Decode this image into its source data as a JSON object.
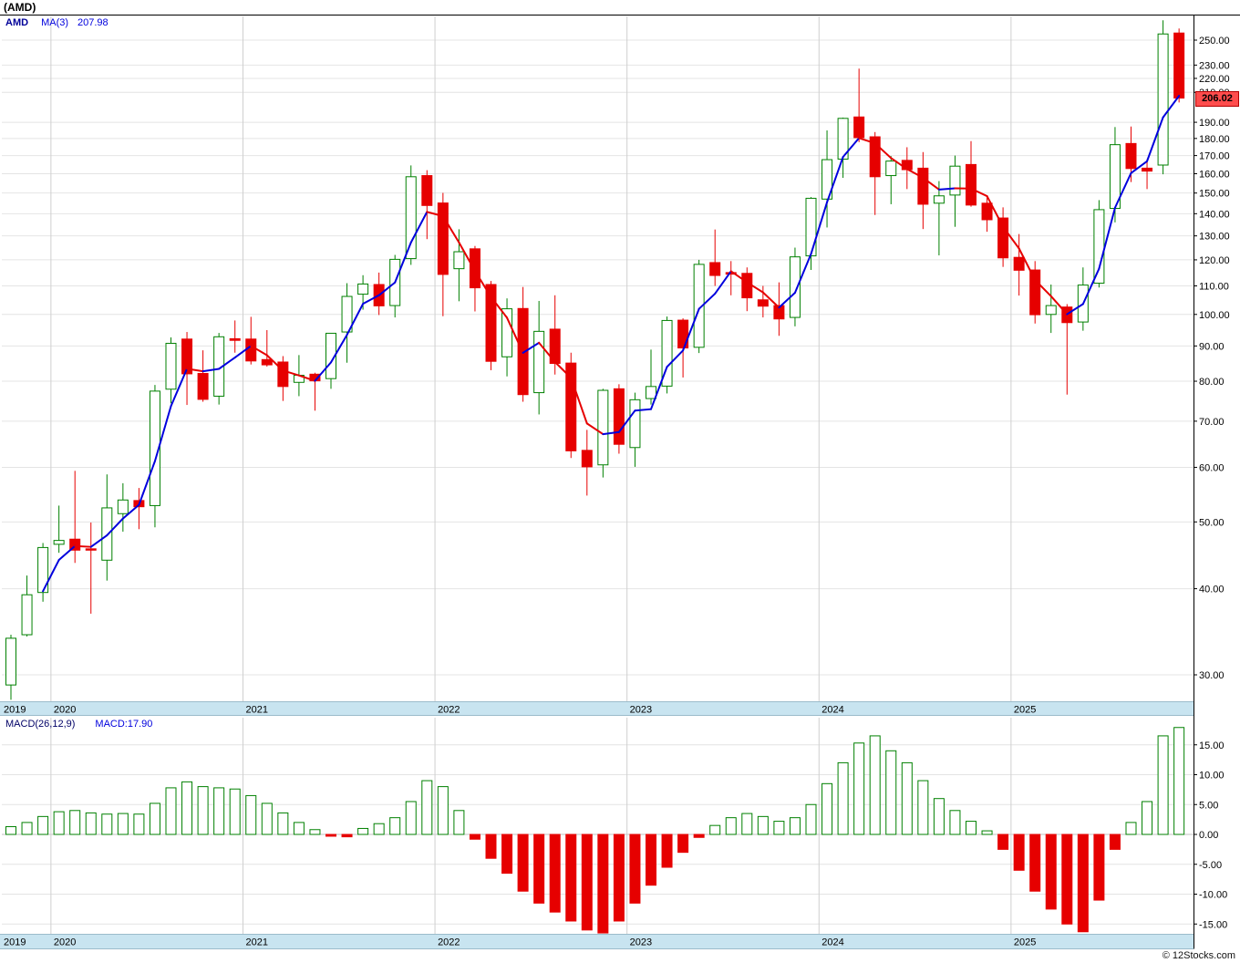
{
  "header": {
    "title": "(AMD)"
  },
  "top_panel": {
    "legend": {
      "symbol": "AMD",
      "ma_label": "MA(3)",
      "ma_value": "207.98"
    },
    "price_tag": "206.02"
  },
  "bottom_panel": {
    "legend": {
      "indicator": "MACD(26,12,9)",
      "value": "MACD:17.90"
    }
  },
  "footer": {
    "credit": "© 12Stocks.com"
  },
  "colors": {
    "up": "#008000",
    "down": "#e60000",
    "ma_up": "#0000dd",
    "ma_down": "#e60000",
    "band": "#c8e4f0",
    "tag_bg": "#ff4d4d",
    "tag_border": "#b30000",
    "grid": "#e4e4e4",
    "grid_vertical": "#cfcfcf",
    "axis_text": "#000000"
  },
  "chart_data": {
    "type": "candlestick",
    "symbol": "AMD",
    "title": "(AMD)",
    "ma_period": 3,
    "ma_last": 207.98,
    "last_price": 206.02,
    "macd_params": [
      26,
      12,
      9
    ],
    "macd_last": 17.9,
    "years": [
      "2019",
      "2020",
      "2021",
      "2022",
      "2023",
      "2024",
      "2025"
    ],
    "price_axis": {
      "scale": "log",
      "min": 30,
      "max": 250,
      "ticks": [
        {
          "v": 250,
          "label": "250.00"
        },
        {
          "v": 230,
          "label": "230.00"
        },
        {
          "v": 220,
          "label": "220.00"
        },
        {
          "v": 210,
          "label": "210.00"
        },
        {
          "v": 190,
          "label": "190.00"
        },
        {
          "v": 180,
          "label": "180.00"
        },
        {
          "v": 170,
          "label": "170.00"
        },
        {
          "v": 160,
          "label": "160.00"
        },
        {
          "v": 150,
          "label": "150.00"
        },
        {
          "v": 140,
          "label": "140.00"
        },
        {
          "v": 130,
          "label": "130.00"
        },
        {
          "v": 120,
          "label": "120.00"
        },
        {
          "v": 110,
          "label": "110.00"
        },
        {
          "v": 100,
          "label": "100.00"
        },
        {
          "v": 90,
          "label": "90.00"
        },
        {
          "v": 80,
          "label": "80.00"
        },
        {
          "v": 70,
          "label": "70.00"
        },
        {
          "v": 60,
          "label": "60.00"
        },
        {
          "v": 50,
          "label": "50.00"
        },
        {
          "v": 40,
          "label": "40.00"
        },
        {
          "v": 30,
          "label": "30.00"
        }
      ]
    },
    "macd_axis": {
      "min": -15,
      "max": 15,
      "ticks": [
        {
          "v": 15,
          "label": "15.00"
        },
        {
          "v": 10,
          "label": "10.00"
        },
        {
          "v": 5,
          "label": "5.00"
        },
        {
          "v": 0,
          "label": "0.00"
        },
        {
          "v": -5,
          "label": "-5.00"
        },
        {
          "v": -10,
          "label": "-10.00"
        },
        {
          "v": -15,
          "label": "-15.00"
        }
      ]
    },
    "fields": [
      "month",
      "open",
      "high",
      "low",
      "close",
      "macd"
    ],
    "candles": [
      [
        "2019-10",
        29.0,
        34.3,
        27.6,
        33.9,
        1.3
      ],
      [
        "2019-11",
        34.3,
        41.8,
        34.1,
        39.2,
        2.0
      ],
      [
        "2019-12",
        39.5,
        46.6,
        38.3,
        45.9,
        3.0
      ],
      [
        "2020-01",
        46.4,
        52.8,
        45.1,
        47.0,
        3.8
      ],
      [
        "2020-02",
        47.2,
        59.3,
        43.6,
        45.5,
        4.0
      ],
      [
        "2020-03",
        45.7,
        49.9,
        36.8,
        45.5,
        3.6
      ],
      [
        "2020-04",
        44.0,
        58.6,
        41.1,
        52.4,
        3.4
      ],
      [
        "2020-05",
        51.4,
        56.9,
        48.4,
        53.8,
        3.5
      ],
      [
        "2020-06",
        53.7,
        56.0,
        48.8,
        52.6,
        3.4
      ],
      [
        "2020-07",
        52.8,
        79.0,
        49.1,
        77.4,
        5.2
      ],
      [
        "2020-08",
        77.9,
        92.6,
        74.3,
        90.8,
        7.8
      ],
      [
        "2020-09",
        92.1,
        94.3,
        73.9,
        82.0,
        8.8
      ],
      [
        "2020-10",
        82.1,
        88.7,
        74.7,
        75.3,
        8.0
      ],
      [
        "2020-11",
        76.1,
        94.0,
        74.0,
        92.8,
        7.8
      ],
      [
        "2020-12",
        92.2,
        98.0,
        88.0,
        91.7,
        7.6
      ],
      [
        "2021-01",
        92.1,
        99.2,
        84.6,
        85.6,
        6.5
      ],
      [
        "2021-02",
        86.0,
        94.9,
        84.0,
        84.5,
        5.2
      ],
      [
        "2021-03",
        85.3,
        87.0,
        74.9,
        78.6,
        3.6
      ],
      [
        "2021-04",
        79.7,
        87.3,
        76.1,
        81.6,
        2.0
      ],
      [
        "2021-05",
        81.9,
        82.3,
        72.5,
        80.1,
        0.8
      ],
      [
        "2021-06",
        80.7,
        94.0,
        78.0,
        93.9,
        -0.3
      ],
      [
        "2021-07",
        94.3,
        111.0,
        85.1,
        106.2,
        -0.4
      ],
      [
        "2021-08",
        107.0,
        114.0,
        101.6,
        110.7,
        1.0
      ],
      [
        "2021-09",
        110.5,
        115.0,
        99.8,
        102.9,
        1.8
      ],
      [
        "2021-10",
        103.0,
        122.0,
        99.0,
        120.2,
        2.8
      ],
      [
        "2021-11",
        120.5,
        164.5,
        118.0,
        158.4,
        5.5
      ],
      [
        "2021-12",
        159.0,
        161.9,
        128.6,
        143.9,
        9.0
      ],
      [
        "2022-01",
        145.1,
        150.1,
        99.4,
        114.3,
        8.0
      ],
      [
        "2022-02",
        116.5,
        132.9,
        104.5,
        123.3,
        4.0
      ],
      [
        "2022-03",
        124.5,
        125.7,
        101.0,
        109.3,
        -0.8
      ],
      [
        "2022-04",
        110.5,
        111.8,
        83.0,
        85.5,
        -4.0
      ],
      [
        "2022-05",
        86.8,
        105.5,
        81.3,
        101.9,
        -6.5
      ],
      [
        "2022-06",
        102.0,
        109.6,
        74.7,
        76.5,
        -9.5
      ],
      [
        "2022-07",
        77.0,
        104.6,
        71.6,
        94.5,
        -11.5
      ],
      [
        "2022-08",
        95.2,
        106.6,
        81.8,
        84.9,
        -13.0
      ],
      [
        "2022-09",
        85.0,
        88.0,
        61.9,
        63.4,
        -14.5
      ],
      [
        "2022-10",
        63.5,
        68.0,
        54.6,
        60.1,
        -16.0
      ],
      [
        "2022-11",
        60.5,
        78.0,
        58.0,
        77.6,
        -16.5
      ],
      [
        "2022-12",
        78.0,
        79.2,
        62.8,
        64.8,
        -14.5
      ],
      [
        "2023-01",
        64.1,
        77.0,
        60.1,
        75.2,
        -11.5
      ],
      [
        "2023-02",
        75.5,
        88.9,
        74.0,
        78.6,
        -8.5
      ],
      [
        "2023-03",
        78.7,
        99.3,
        76.8,
        98.0,
        -5.5
      ],
      [
        "2023-04",
        98.1,
        98.7,
        81.0,
        89.4,
        -3.0
      ],
      [
        "2023-05",
        89.6,
        120.0,
        87.9,
        118.2,
        -0.5
      ],
      [
        "2023-06",
        118.9,
        132.8,
        110.0,
        113.9,
        1.5
      ],
      [
        "2023-07",
        115.0,
        119.5,
        106.6,
        114.4,
        2.8
      ],
      [
        "2023-08",
        114.7,
        117.0,
        101.1,
        105.7,
        3.5
      ],
      [
        "2023-09",
        105.0,
        110.0,
        99.0,
        102.8,
        3.0
      ],
      [
        "2023-10",
        103.0,
        111.3,
        93.1,
        98.5,
        2.2
      ],
      [
        "2023-11",
        99.0,
        125.0,
        96.1,
        121.2,
        2.8
      ],
      [
        "2023-12",
        121.6,
        148.0,
        116.0,
        147.4,
        5.0
      ],
      [
        "2024-01",
        147.0,
        184.9,
        133.7,
        167.7,
        8.5
      ],
      [
        "2024-02",
        168.0,
        193.0,
        157.8,
        192.5,
        12.0
      ],
      [
        "2024-03",
        193.4,
        227.3,
        177.8,
        180.5,
        15.3
      ],
      [
        "2024-04",
        181.0,
        183.9,
        139.4,
        158.4,
        16.5
      ],
      [
        "2024-05",
        159.0,
        169.7,
        144.5,
        166.9,
        14.0
      ],
      [
        "2024-06",
        167.3,
        174.8,
        152.0,
        162.2,
        12.0
      ],
      [
        "2024-07",
        163.0,
        172.0,
        133.0,
        144.5,
        9.0
      ],
      [
        "2024-08",
        145.0,
        156.1,
        121.8,
        148.6,
        6.0
      ],
      [
        "2024-09",
        149.0,
        170.0,
        134.0,
        164.1,
        4.0
      ],
      [
        "2024-10",
        165.0,
        178.4,
        143.3,
        144.1,
        2.2
      ],
      [
        "2024-11",
        145.0,
        148.5,
        131.8,
        137.2,
        0.6
      ],
      [
        "2024-12",
        138.0,
        143.0,
        117.2,
        120.8,
        -2.5
      ],
      [
        "2025-01",
        121.0,
        130.8,
        106.5,
        115.9,
        -6.0
      ],
      [
        "2025-02",
        116.0,
        119.5,
        97.0,
        99.9,
        -9.5
      ],
      [
        "2025-03",
        100.0,
        110.5,
        94.0,
        103.0,
        -12.5
      ],
      [
        "2025-04",
        102.5,
        103.5,
        76.5,
        97.3,
        -15.0
      ],
      [
        "2025-05",
        97.5,
        117.0,
        94.7,
        110.3,
        -16.3
      ],
      [
        "2025-06",
        111.0,
        146.5,
        109.4,
        141.9,
        -11.0
      ],
      [
        "2025-07",
        142.5,
        187.0,
        136.0,
        176.3,
        -2.5
      ],
      [
        "2025-08",
        177.0,
        187.3,
        155.6,
        162.8,
        2.0
      ],
      [
        "2025-09",
        163.0,
        168.0,
        152.0,
        161.4,
        5.5
      ],
      [
        "2025-10",
        164.7,
        267.1,
        159.7,
        255.2,
        16.5
      ],
      [
        "2025-11",
        256.0,
        259.9,
        203.0,
        206.0,
        17.9
      ]
    ]
  }
}
